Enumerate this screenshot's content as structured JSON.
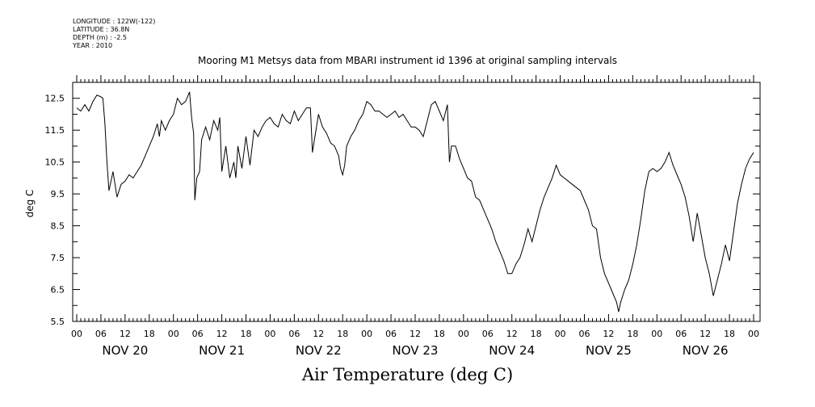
{
  "meta": {
    "longitude": "LONGITUDE : 122W(-122)",
    "latitude": "LATITUDE : 36.8N",
    "depth": "DEPTH (m) : -2.5",
    "year": "YEAR : 2010"
  },
  "chart_data": {
    "type": "line",
    "title": "Mooring M1 Metsys data from MBARI instrument id 1396 at original sampling intervals",
    "xlabel": "Air Temperature (deg C)",
    "ylabel": "deg C",
    "ylim": [
      5.5,
      13.0
    ],
    "yticks": [
      5.5,
      6.5,
      7.5,
      8.5,
      9.5,
      10.5,
      11.5,
      12.5
    ],
    "xlim_hours": [
      0,
      168
    ],
    "hour_tick_labels": [
      "00",
      "06",
      "12",
      "18",
      "00",
      "06",
      "12",
      "18",
      "00",
      "06",
      "12",
      "18",
      "00",
      "06",
      "12",
      "18",
      "00",
      "06",
      "12",
      "18",
      "00",
      "06",
      "12",
      "18",
      "00",
      "06",
      "12",
      "18",
      "00"
    ],
    "day_labels": [
      "NOV 20",
      "NOV 21",
      "NOV 22",
      "NOV 23",
      "NOV 24",
      "NOV 25",
      "NOV 26"
    ],
    "series": [
      {
        "values": [
          [
            0,
            12.2
          ],
          [
            1,
            12.1
          ],
          [
            2,
            12.3
          ],
          [
            3,
            12.1
          ],
          [
            4,
            12.4
          ],
          [
            5,
            12.6
          ],
          [
            6,
            12.55
          ],
          [
            6.5,
            12.5
          ],
          [
            7,
            11.7
          ],
          [
            7.5,
            10.5
          ],
          [
            8,
            9.6
          ],
          [
            9,
            10.2
          ],
          [
            9.5,
            9.8
          ],
          [
            10,
            9.4
          ],
          [
            11,
            9.8
          ],
          [
            12,
            9.9
          ],
          [
            13,
            10.1
          ],
          [
            14,
            10.0
          ],
          [
            15,
            10.2
          ],
          [
            16,
            10.4
          ],
          [
            17,
            10.7
          ],
          [
            18,
            11.0
          ],
          [
            19,
            11.3
          ],
          [
            20,
            11.7
          ],
          [
            20.5,
            11.3
          ],
          [
            21,
            11.8
          ],
          [
            22,
            11.5
          ],
          [
            23,
            11.8
          ],
          [
            24,
            12.0
          ],
          [
            25,
            12.5
          ],
          [
            26,
            12.3
          ],
          [
            27,
            12.4
          ],
          [
            28,
            12.7
          ],
          [
            28.5,
            11.9
          ],
          [
            29,
            11.4
          ],
          [
            29.3,
            9.3
          ],
          [
            29.8,
            10.0
          ],
          [
            30.5,
            10.2
          ],
          [
            31,
            11.2
          ],
          [
            32,
            11.6
          ],
          [
            33,
            11.2
          ],
          [
            34,
            11.8
          ],
          [
            35,
            11.5
          ],
          [
            35.5,
            11.9
          ],
          [
            36,
            10.2
          ],
          [
            37,
            11.0
          ],
          [
            38,
            10.0
          ],
          [
            39,
            10.5
          ],
          [
            39.5,
            10.0
          ],
          [
            40,
            11.0
          ],
          [
            41,
            10.3
          ],
          [
            42,
            11.3
          ],
          [
            43,
            10.4
          ],
          [
            44,
            11.5
          ],
          [
            45,
            11.3
          ],
          [
            46,
            11.6
          ],
          [
            47,
            11.8
          ],
          [
            48,
            11.9
          ],
          [
            49,
            11.7
          ],
          [
            50,
            11.6
          ],
          [
            51,
            12.0
          ],
          [
            52,
            11.8
          ],
          [
            53,
            11.7
          ],
          [
            54,
            12.1
          ],
          [
            55,
            11.8
          ],
          [
            56,
            12.0
          ],
          [
            57,
            12.2
          ],
          [
            58,
            12.2
          ],
          [
            58.5,
            10.8
          ],
          [
            59,
            11.2
          ],
          [
            60,
            12.0
          ],
          [
            61,
            11.6
          ],
          [
            62,
            11.4
          ],
          [
            63,
            11.1
          ],
          [
            64,
            11.0
          ],
          [
            65,
            10.7
          ],
          [
            65.5,
            10.3
          ],
          [
            66,
            10.1
          ],
          [
            66.5,
            10.4
          ],
          [
            67,
            11.0
          ],
          [
            68,
            11.3
          ],
          [
            69,
            11.5
          ],
          [
            70,
            11.8
          ],
          [
            71,
            12.0
          ],
          [
            72,
            12.4
          ],
          [
            73,
            12.3
          ],
          [
            74,
            12.1
          ],
          [
            75,
            12.1
          ],
          [
            76,
            12.0
          ],
          [
            77,
            11.9
          ],
          [
            78,
            12.0
          ],
          [
            79,
            12.1
          ],
          [
            80,
            11.9
          ],
          [
            81,
            12.0
          ],
          [
            82,
            11.8
          ],
          [
            83,
            11.6
          ],
          [
            84,
            11.6
          ],
          [
            85,
            11.5
          ],
          [
            86,
            11.3
          ],
          [
            87,
            11.8
          ],
          [
            88,
            12.3
          ],
          [
            89,
            12.4
          ],
          [
            90,
            12.1
          ],
          [
            91,
            11.8
          ],
          [
            92,
            12.3
          ],
          [
            92.5,
            10.5
          ],
          [
            93,
            11.0
          ],
          [
            94,
            11.0
          ],
          [
            95,
            10.6
          ],
          [
            96,
            10.3
          ],
          [
            97,
            10.0
          ],
          [
            98,
            9.9
          ],
          [
            99,
            9.4
          ],
          [
            100,
            9.3
          ],
          [
            101,
            9.0
          ],
          [
            102,
            8.7
          ],
          [
            103,
            8.4
          ],
          [
            104,
            8.0
          ],
          [
            105,
            7.7
          ],
          [
            106,
            7.4
          ],
          [
            107,
            7.0
          ],
          [
            108,
            7.0
          ],
          [
            109,
            7.3
          ],
          [
            110,
            7.5
          ],
          [
            111,
            7.9
          ],
          [
            112,
            8.4
          ],
          [
            113,
            8.0
          ],
          [
            114,
            8.5
          ],
          [
            115,
            9.0
          ],
          [
            116,
            9.4
          ],
          [
            117,
            9.7
          ],
          [
            118,
            10.0
          ],
          [
            119,
            10.4
          ],
          [
            120,
            10.1
          ],
          [
            121,
            10.0
          ],
          [
            122,
            9.9
          ],
          [
            123,
            9.8
          ],
          [
            124,
            9.7
          ],
          [
            125,
            9.6
          ],
          [
            126,
            9.3
          ],
          [
            127,
            9.0
          ],
          [
            128,
            8.5
          ],
          [
            129,
            8.4
          ],
          [
            130,
            7.5
          ],
          [
            131,
            7.0
          ],
          [
            132,
            6.7
          ],
          [
            133,
            6.4
          ],
          [
            134,
            6.1
          ],
          [
            134.5,
            5.8
          ],
          [
            135,
            6.1
          ],
          [
            136,
            6.5
          ],
          [
            137,
            6.8
          ],
          [
            138,
            7.3
          ],
          [
            139,
            7.9
          ],
          [
            140,
            8.7
          ],
          [
            141,
            9.6
          ],
          [
            142,
            10.2
          ],
          [
            143,
            10.3
          ],
          [
            144,
            10.2
          ],
          [
            145,
            10.3
          ],
          [
            146,
            10.5
          ],
          [
            147,
            10.8
          ],
          [
            148,
            10.4
          ],
          [
            149,
            10.1
          ],
          [
            150,
            9.8
          ],
          [
            151,
            9.4
          ],
          [
            152,
            8.8
          ],
          [
            153,
            8.0
          ],
          [
            154,
            8.9
          ],
          [
            155,
            8.2
          ],
          [
            156,
            7.5
          ],
          [
            157,
            7.0
          ],
          [
            158,
            6.3
          ],
          [
            159,
            6.8
          ],
          [
            160,
            7.3
          ],
          [
            161,
            7.9
          ],
          [
            162,
            7.4
          ],
          [
            163,
            8.3
          ],
          [
            164,
            9.2
          ],
          [
            165,
            9.8
          ],
          [
            166,
            10.3
          ],
          [
            167,
            10.6
          ],
          [
            168,
            10.8
          ]
        ]
      }
    ]
  }
}
